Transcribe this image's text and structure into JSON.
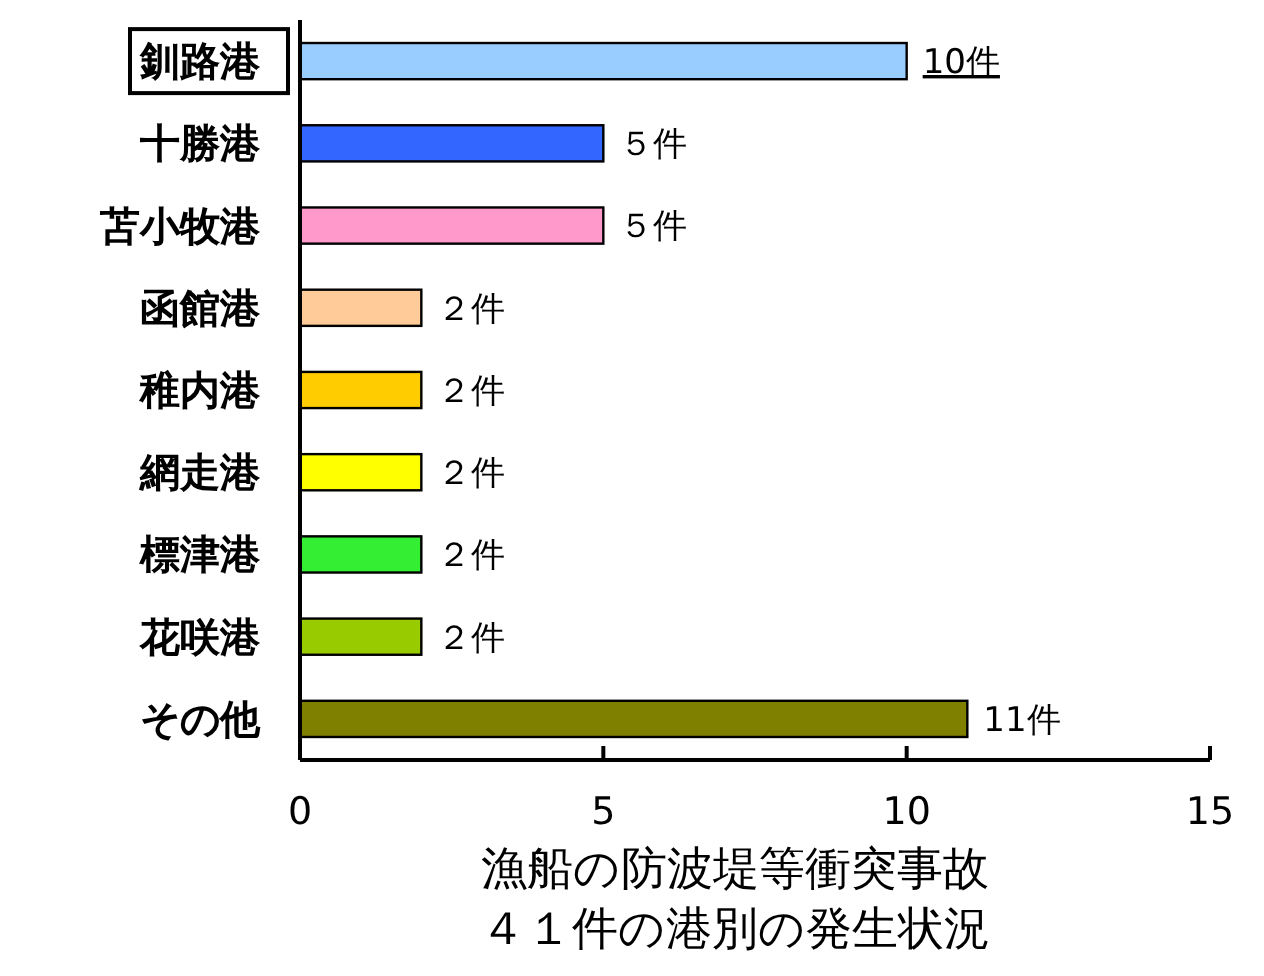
{
  "chart_data": {
    "type": "bar",
    "orientation": "horizontal",
    "xlabel": "漁船の防波堤等衝突事故",
    "annotations": [
      "４１件の港別の発生状況"
    ],
    "categories": [
      "釧路港",
      "十勝港",
      "苫小牧港",
      "函館港",
      "稚内港",
      "網走港",
      "標津港",
      "花咲港",
      "その他"
    ],
    "values": [
      10,
      5,
      5,
      2,
      2,
      2,
      2,
      2,
      11
    ],
    "colors": [
      "#99ccff",
      "#3366ff",
      "#ff99cc",
      "#ffcc99",
      "#ffcc00",
      "#ffff00",
      "#33ee33",
      "#99cc00",
      "#808000"
    ],
    "value_labels": [
      "10件",
      "５件",
      "５件",
      "２件",
      "２件",
      "２件",
      "２件",
      "２件",
      "11件"
    ],
    "xlim": [
      0,
      15
    ],
    "xticks": [
      0,
      5,
      10,
      15
    ]
  }
}
